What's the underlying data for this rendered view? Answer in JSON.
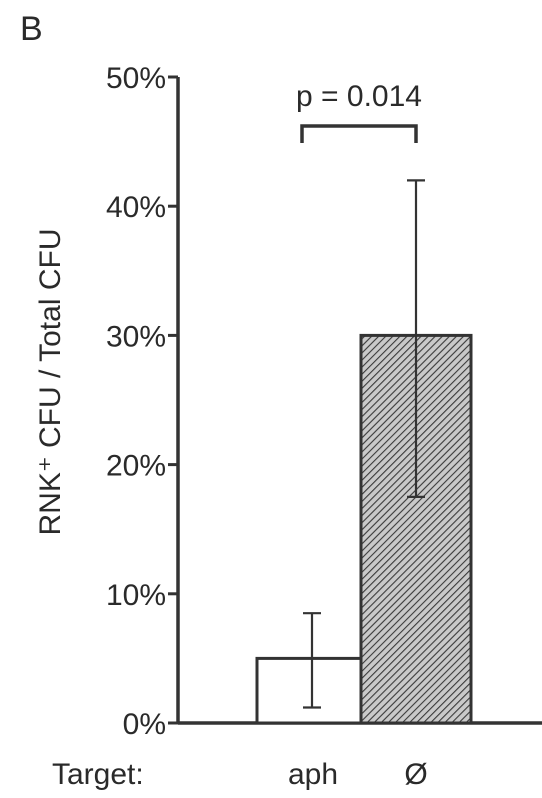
{
  "panel_label": "B",
  "chart_data": {
    "type": "bar",
    "title": "",
    "ylabel": "RNK⁺ CFU / Total CFU",
    "xlabel": "Target:",
    "categories": [
      "aph",
      "Ø"
    ],
    "values": [
      5,
      30
    ],
    "error_upper": [
      8.5,
      42
    ],
    "error_lower": [
      1.2,
      17.5
    ],
    "ylim": [
      0,
      50
    ],
    "yticks": [
      0,
      10,
      20,
      30,
      40,
      50
    ],
    "ytick_labels": [
      "0%",
      "10%",
      "20%",
      "30%",
      "40%",
      "50%"
    ],
    "bar_fills": [
      "open",
      "hatched"
    ],
    "grid": false,
    "legend": "none",
    "annotation": {
      "text": "p = 0.014",
      "between": [
        "aph",
        "Ø"
      ]
    }
  }
}
